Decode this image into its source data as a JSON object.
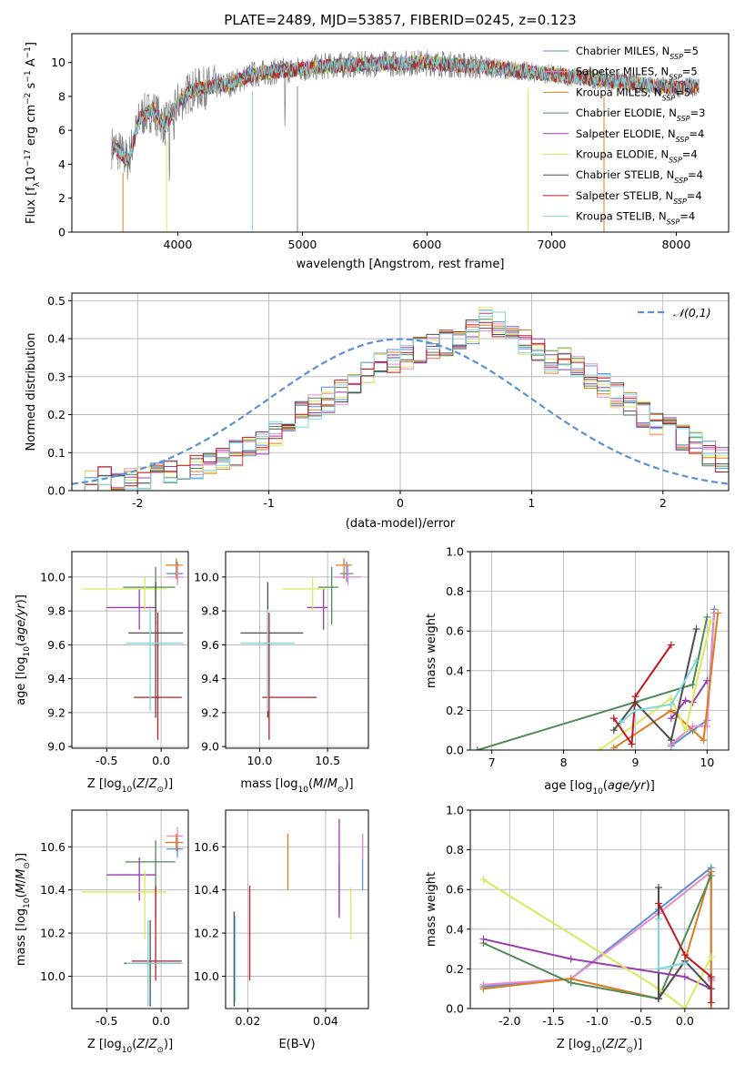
{
  "palette": {
    "Chabrier MILES": "#5b8fd6",
    "Salpeter MILES": "#e88bc8",
    "Kroupa MILES": "#e07b1f",
    "Chabrier ELODIE": "#4f8a57",
    "Salpeter ELODIE": "#9b3bb0",
    "Kroupa ELODIE": "#d8ea5a",
    "Chabrier STELIB": "#4d4d4d",
    "Salpeter STELIB": "#c01820",
    "Kroupa STELIB": "#7fd7df"
  },
  "chart_data": [
    {
      "id": "spectrum",
      "type": "line",
      "title": "PLATE=2489, MJD=53857, FIBERID=0245, z=0.123",
      "xlabel": "wavelength [Angstrom, rest frame]",
      "ylabel": "Flux [f_λ10^-17 erg cm^-2 s^-1 A^-1]",
      "xlim": [
        3150,
        8420
      ],
      "ylim": [
        0,
        11.7
      ],
      "xticks": [
        4000,
        5000,
        6000,
        7000,
        8000
      ],
      "yticks": [
        0,
        2,
        4,
        6,
        8,
        10
      ],
      "legend_position": "top-right",
      "data_continuum": {
        "x": [
          3500,
          3600,
          3700,
          3800,
          3900,
          4000,
          4100,
          4200,
          4400,
          4600,
          4800,
          5000,
          5200,
          5500,
          6000,
          6500,
          7000,
          7500,
          8000,
          8200
        ],
        "y": [
          5.0,
          4.2,
          6.8,
          7.2,
          6.3,
          7.6,
          8.3,
          8.5,
          8.7,
          9.3,
          9.5,
          9.6,
          9.8,
          9.9,
          10.0,
          9.7,
          9.3,
          8.9,
          8.5,
          8.6
        ]
      },
      "series": [
        {
          "name": "Chabrier MILES",
          "label": "N_SSP=5"
        },
        {
          "name": "Salpeter MILES",
          "label": "N_SSP=5"
        },
        {
          "name": "Kroupa MILES",
          "label": "N_SSP=5"
        },
        {
          "name": "Chabrier ELODIE",
          "label": "N_SSP=3"
        },
        {
          "name": "Salpeter ELODIE",
          "label": "N_SSP=4"
        },
        {
          "name": "Kroupa ELODIE",
          "label": "N_SSP=4"
        },
        {
          "name": "Chabrier STELIB",
          "label": "N_SSP=4"
        },
        {
          "name": "Salpeter STELIB",
          "label": "N_SSP=4"
        },
        {
          "name": "Kroupa STELIB",
          "label": "N_SSP=4"
        }
      ]
    },
    {
      "id": "residuals",
      "type": "histogram",
      "xlabel": "(data-model)/error",
      "ylabel": "Normed distribution",
      "xlim": [
        -2.5,
        2.5
      ],
      "ylim": [
        0,
        0.52
      ],
      "xticks": [
        -2,
        -1,
        0,
        1,
        2
      ],
      "yticks": [
        0.0,
        0.1,
        0.2,
        0.3,
        0.4,
        0.5
      ],
      "grid": true,
      "legend": "𝒩(0,1)",
      "legend_position": "top-right",
      "bin_edges_range": [
        -2.5,
        2.5
      ],
      "bin_width": 0.1,
      "mean_profile": [
        0.02,
        0.025,
        0.03,
        0.035,
        0.03,
        0.035,
        0.04,
        0.045,
        0.055,
        0.065,
        0.07,
        0.085,
        0.1,
        0.12,
        0.13,
        0.15,
        0.18,
        0.2,
        0.22,
        0.24,
        0.26,
        0.28,
        0.31,
        0.33,
        0.34,
        0.35,
        0.37,
        0.38,
        0.39,
        0.4,
        0.42,
        0.45,
        0.44,
        0.4,
        0.39,
        0.37,
        0.34,
        0.35,
        0.33,
        0.3,
        0.28,
        0.25,
        0.23,
        0.2,
        0.18,
        0.16,
        0.14,
        0.12,
        0.1,
        0.08
      ],
      "gaussian": {
        "mean": 0,
        "sigma": 1
      }
    },
    {
      "id": "age_vs_Z",
      "type": "errorbar",
      "xlabel": "Z [log10(Z/Z⊙)]",
      "ylabel": "age  [log10(age/yr)]",
      "xlim": [
        -0.82,
        0.25
      ],
      "ylim": [
        8.99,
        10.15
      ],
      "xticks": [
        -0.5,
        0.0
      ],
      "yticks": [
        9.0,
        9.2,
        9.4,
        9.6,
        9.8,
        10.0
      ],
      "grid": true,
      "points": [
        {
          "model": "Chabrier MILES",
          "x": 0.15,
          "xerr": [
            0.1,
            0.05
          ],
          "y": 10.02,
          "yerr": [
            0.05,
            0.07
          ]
        },
        {
          "model": "Salpeter MILES",
          "x": 0.15,
          "xerr": [
            0.1,
            0.05
          ],
          "y": 10.0,
          "yerr": [
            0.05,
            0.07
          ]
        },
        {
          "model": "Kroupa MILES",
          "x": 0.14,
          "xerr": [
            0.1,
            0.06
          ],
          "y": 10.07,
          "yerr": [
            0.08,
            0.04
          ]
        },
        {
          "model": "Chabrier ELODIE",
          "x": -0.05,
          "xerr": [
            0.3,
            0.18
          ],
          "y": 9.94,
          "yerr": [
            0.22,
            0.12
          ]
        },
        {
          "model": "Salpeter ELODIE",
          "x": -0.2,
          "xerr": [
            0.3,
            0.15
          ],
          "y": 9.82,
          "yerr": [
            0.13,
            0.11
          ]
        },
        {
          "model": "Kroupa ELODIE",
          "x": -0.15,
          "xerr": [
            0.58,
            0.2
          ],
          "y": 9.93,
          "yerr": [
            0.13,
            0.07
          ]
        },
        {
          "model": "Chabrier STELIB",
          "x": -0.05,
          "xerr": [
            0.25,
            0.25
          ],
          "y": 9.67,
          "yerr": [
            0.5,
            0.3
          ]
        },
        {
          "model": "Salpeter STELIB",
          "x": -0.03,
          "xerr": [
            0.22,
            0.22
          ],
          "y": 9.29,
          "yerr": [
            0.25,
            0.5
          ]
        },
        {
          "model": "Kroupa STELIB",
          "x": -0.1,
          "xerr": [
            0.22,
            0.3
          ],
          "y": 9.61,
          "yerr": [
            0.4,
            0.2
          ]
        }
      ]
    },
    {
      "id": "age_vs_mass",
      "type": "errorbar",
      "xlabel": "mass [log10(M/M⊙)]",
      "ylabel": "",
      "xlim": [
        9.75,
        10.8
      ],
      "ylim": [
        8.99,
        10.15
      ],
      "xticks": [
        10.0,
        10.5
      ],
      "yticks": [
        9.0,
        9.2,
        9.4,
        9.6,
        9.8,
        10.0
      ],
      "grid": true,
      "points": [
        {
          "model": "Chabrier MILES",
          "x": 10.64,
          "xerr": [
            0.05,
            0.05
          ],
          "y": 10.02,
          "yerr": [
            0.05,
            0.07
          ]
        },
        {
          "model": "Salpeter MILES",
          "x": 10.65,
          "xerr": [
            0.1,
            0.1
          ],
          "y": 10.0,
          "yerr": [
            0.05,
            0.07
          ]
        },
        {
          "model": "Kroupa MILES",
          "x": 10.62,
          "xerr": [
            0.06,
            0.06
          ],
          "y": 10.07,
          "yerr": [
            0.08,
            0.04
          ]
        },
        {
          "model": "Chabrier ELODIE",
          "x": 10.53,
          "xerr": [
            0.1,
            0.05
          ],
          "y": 9.94,
          "yerr": [
            0.22,
            0.12
          ]
        },
        {
          "model": "Salpeter ELODIE",
          "x": 10.47,
          "xerr": [
            0.12,
            0.03
          ],
          "y": 9.82,
          "yerr": [
            0.13,
            0.11
          ]
        },
        {
          "model": "Kroupa ELODIE",
          "x": 10.39,
          "xerr": [
            0.22,
            0.1
          ],
          "y": 9.93,
          "yerr": [
            0.13,
            0.07
          ]
        },
        {
          "model": "Chabrier STELIB",
          "x": 10.06,
          "xerr": [
            0.2,
            0.26
          ],
          "y": 9.67,
          "yerr": [
            0.5,
            0.3
          ]
        },
        {
          "model": "Salpeter STELIB",
          "x": 10.07,
          "xerr": [
            0.05,
            0.35
          ],
          "y": 9.29,
          "yerr": [
            0.25,
            0.5
          ]
        },
        {
          "model": "Kroupa STELIB",
          "x": 10.06,
          "xerr": [
            0.2,
            0.2
          ],
          "y": 9.61,
          "yerr": [
            0.4,
            0.2
          ]
        }
      ]
    },
    {
      "id": "weight_vs_age",
      "type": "line",
      "xlabel": "age  [log10(age/yr)]",
      "ylabel": "mass weight",
      "xlim": [
        6.7,
        10.3
      ],
      "ylim": [
        0,
        1.0
      ],
      "xticks": [
        7,
        8,
        9,
        10
      ],
      "yticks": [
        0.0,
        0.2,
        0.4,
        0.6,
        0.8,
        1.0
      ],
      "grid": true,
      "series": [
        {
          "model": "Chabrier MILES",
          "x": [
            9.5,
            9.8,
            10.0,
            10.1
          ],
          "y": [
            0.02,
            0.1,
            0.15,
            0.71
          ]
        },
        {
          "model": "Salpeter MILES",
          "x": [
            9.5,
            9.8,
            10.0,
            10.1
          ],
          "y": [
            0.03,
            0.12,
            0.12,
            0.69
          ]
        },
        {
          "model": "Kroupa MILES",
          "x": [
            8.7,
            9.5,
            9.95,
            10.15
          ],
          "y": [
            0.01,
            0.2,
            0.05,
            0.69
          ]
        },
        {
          "model": "Chabrier ELODIE",
          "x": [
            6.8,
            9.8,
            10.0
          ],
          "y": [
            0.0,
            0.33,
            0.67
          ]
        },
        {
          "model": "Salpeter ELODIE",
          "x": [
            9.5,
            9.7,
            9.8,
            10.0
          ],
          "y": [
            0.16,
            0.25,
            0.24,
            0.35
          ]
        },
        {
          "model": "Kroupa ELODIE",
          "x": [
            8.5,
            9.5,
            9.7,
            10.05
          ],
          "y": [
            0.0,
            0.26,
            0.1,
            0.65
          ]
        },
        {
          "model": "Chabrier STELIB",
          "x": [
            8.7,
            9.0,
            9.5,
            9.85
          ],
          "y": [
            0.1,
            0.24,
            0.05,
            0.61
          ]
        },
        {
          "model": "Salpeter STELIB",
          "x": [
            8.7,
            8.95,
            9.0,
            9.5
          ],
          "y": [
            0.16,
            0.03,
            0.27,
            0.53
          ]
        },
        {
          "model": "Kroupa STELIB",
          "x": [
            8.8,
            9.0,
            9.5,
            9.85
          ],
          "y": [
            0.14,
            0.2,
            0.23,
            0.45
          ]
        }
      ]
    },
    {
      "id": "mass_vs_Z",
      "type": "errorbar",
      "xlabel": "Z [log10(Z/Z⊙)]",
      "ylabel": "mass [log10(M/M⊙)]",
      "xlim": [
        -0.82,
        0.25
      ],
      "ylim": [
        9.85,
        10.77
      ],
      "xticks": [
        -0.5,
        0.0
      ],
      "yticks": [
        10.0,
        10.2,
        10.4,
        10.6
      ],
      "grid": true,
      "points": [
        {
          "model": "Chabrier MILES",
          "x": 0.15,
          "xerr": [
            0.1,
            0.05
          ],
          "y": 10.59,
          "yerr": [
            0.04,
            0.05
          ]
        },
        {
          "model": "Salpeter MILES",
          "x": 0.15,
          "xerr": [
            0.1,
            0.05
          ],
          "y": 10.65,
          "yerr": [
            0.05,
            0.04
          ]
        },
        {
          "model": "Kroupa MILES",
          "x": 0.14,
          "xerr": [
            0.1,
            0.06
          ],
          "y": 10.62,
          "yerr": [
            0.04,
            0.04
          ]
        },
        {
          "model": "Chabrier ELODIE",
          "x": -0.05,
          "xerr": [
            0.28,
            0.18
          ],
          "y": 10.53,
          "yerr": [
            0.26,
            0.1
          ]
        },
        {
          "model": "Salpeter ELODIE",
          "x": -0.2,
          "xerr": [
            0.3,
            0.15
          ],
          "y": 10.47,
          "yerr": [
            0.12,
            0.08
          ]
        },
        {
          "model": "Kroupa ELODIE",
          "x": -0.15,
          "xerr": [
            0.58,
            0.2
          ],
          "y": 10.39,
          "yerr": [
            0.22,
            0.1
          ]
        },
        {
          "model": "Chabrier STELIB",
          "x": -0.1,
          "xerr": [
            0.24,
            0.28
          ],
          "y": 10.06,
          "yerr": [
            0.2,
            0.2
          ]
        },
        {
          "model": "Salpeter STELIB",
          "x": -0.05,
          "xerr": [
            0.22,
            0.24
          ],
          "y": 10.07,
          "yerr": [
            0.09,
            0.35
          ]
        },
        {
          "model": "Kroupa STELIB",
          "x": -0.12,
          "xerr": [
            0.2,
            0.32
          ],
          "y": 10.06,
          "yerr": [
            0.2,
            0.2
          ]
        }
      ]
    },
    {
      "id": "mass_vs_ebv",
      "type": "errorbar",
      "xlabel": "E(B-V)",
      "ylabel": "",
      "xlim": [
        0.0143,
        0.051
      ],
      "ylim": [
        9.85,
        10.77
      ],
      "xticks": [
        0.02,
        0.04
      ],
      "yticks": [
        10.0,
        10.2,
        10.4,
        10.6
      ],
      "grid": true,
      "points": [
        {
          "model": "Chabrier MILES",
          "x": 0.0495,
          "y": 10.53,
          "yerr": [
            0.13,
            0.13
          ]
        },
        {
          "model": "Salpeter MILES",
          "x": 0.0495,
          "y": 10.6,
          "yerr": [
            0.06,
            0.06
          ]
        },
        {
          "model": "Kroupa MILES",
          "x": 0.0303,
          "y": 10.53,
          "yerr": [
            0.13,
            0.13
          ]
        },
        {
          "model": "Chabrier ELODIE",
          "x": 0.0435,
          "y": 10.4,
          "yerr": [
            0.12,
            0.12
          ]
        },
        {
          "model": "Salpeter ELODIE",
          "x": 0.0435,
          "y": 10.5,
          "yerr": [
            0.23,
            0.23
          ]
        },
        {
          "model": "Kroupa ELODIE",
          "x": 0.0465,
          "y": 10.29,
          "yerr": [
            0.12,
            0.12
          ]
        },
        {
          "model": "Chabrier STELIB",
          "x": 0.0165,
          "y": 10.08,
          "yerr": [
            0.22,
            0.22
          ]
        },
        {
          "model": "Salpeter STELIB",
          "x": 0.0205,
          "y": 10.2,
          "yerr": [
            0.22,
            0.22
          ]
        },
        {
          "model": "Kroupa STELIB",
          "x": 0.0168,
          "y": 10.08,
          "yerr": [
            0.2,
            0.2
          ]
        }
      ]
    },
    {
      "id": "weight_vs_Z",
      "type": "line",
      "xlabel": "Z [log10(Z/Z⊙)]",
      "ylabel": "mass weight",
      "xlim": [
        -2.45,
        0.5
      ],
      "ylim": [
        0,
        1.0
      ],
      "xticks": [
        -2.0,
        -1.5,
        -1.0,
        -0.5,
        0.0
      ],
      "yticks": [
        0.0,
        0.2,
        0.4,
        0.6,
        0.8,
        1.0
      ],
      "grid": true,
      "series": [
        {
          "model": "Chabrier MILES",
          "x": [
            -2.3,
            -1.3,
            -0.3,
            0.3,
            0.3
          ],
          "y": [
            0.11,
            0.15,
            0.5,
            0.71,
            0.15
          ]
        },
        {
          "model": "Salpeter MILES",
          "x": [
            -2.3,
            -1.3,
            -0.3,
            0.3,
            0.3
          ],
          "y": [
            0.12,
            0.15,
            0.48,
            0.69,
            0.14
          ]
        },
        {
          "model": "Kroupa MILES",
          "x": [
            -2.3,
            -1.3,
            -0.3,
            0.0,
            0.3,
            0.3
          ],
          "y": [
            0.1,
            0.15,
            0.05,
            0.24,
            0.69,
            0.0
          ]
        },
        {
          "model": "Chabrier ELODIE",
          "x": [
            -2.3,
            -1.3,
            -0.3,
            0.3
          ],
          "y": [
            0.33,
            0.13,
            0.05,
            0.67
          ]
        },
        {
          "model": "Salpeter ELODIE",
          "x": [
            -2.3,
            -1.3,
            0.0,
            0.3
          ],
          "y": [
            0.35,
            0.25,
            0.16,
            0.1
          ]
        },
        {
          "model": "Kroupa ELODIE",
          "x": [
            -2.3,
            -0.3,
            0.0,
            0.3
          ],
          "y": [
            0.65,
            0.1,
            0.0,
            0.26
          ]
        },
        {
          "model": "Chabrier STELIB",
          "x": [
            -0.3,
            -0.3,
            0.0,
            0.3
          ],
          "y": [
            0.61,
            0.05,
            0.24,
            0.1
          ]
        },
        {
          "model": "Salpeter STELIB",
          "x": [
            -0.3,
            0.0,
            0.3,
            0.3
          ],
          "y": [
            0.53,
            0.27,
            0.16,
            0.03
          ]
        },
        {
          "model": "Kroupa STELIB",
          "x": [
            -0.3,
            -0.3,
            0.0
          ],
          "y": [
            0.45,
            0.2,
            0.23
          ]
        }
      ]
    }
  ]
}
